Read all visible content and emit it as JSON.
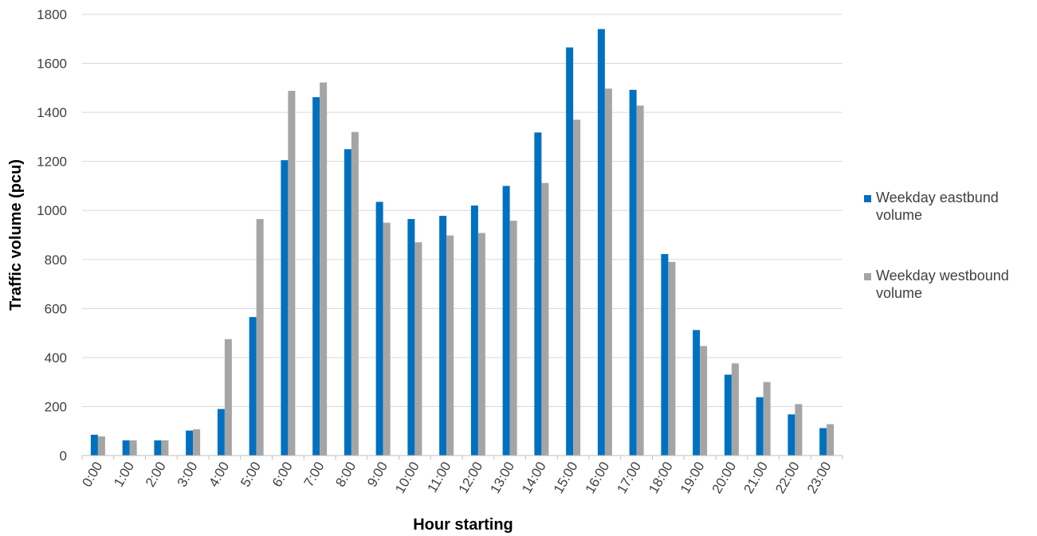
{
  "chart_data": {
    "type": "bar",
    "title": "",
    "xlabel": "Hour starting",
    "ylabel": "Traffic volume (pcu)",
    "ylim": [
      0,
      1800
    ],
    "yticks": [
      "0",
      "200",
      "400",
      "600",
      "800",
      "1000",
      "1200",
      "1400",
      "1600",
      "1800"
    ],
    "grid": true,
    "legend_position": "right",
    "categories": [
      "0:00",
      "1:00",
      "2:00",
      "3:00",
      "4:00",
      "5:00",
      "6:00",
      "7:00",
      "8:00",
      "9:00",
      "10:00",
      "11:00",
      "12:00",
      "13:00",
      "14:00",
      "15:00",
      "16:00",
      "17:00",
      "18:00",
      "19:00",
      "20:00",
      "21:00",
      "22:00",
      "23:00"
    ],
    "series": [
      {
        "name": "Weekday eastbund volume",
        "legend_lines": [
          "Weekday eastbund",
          "volume"
        ],
        "color": "#0070C0",
        "values": [
          85,
          62,
          62,
          102,
          190,
          565,
          1205,
          1462,
          1250,
          1035,
          965,
          978,
          1020,
          1100,
          1318,
          1665,
          1740,
          1492,
          822,
          512,
          330,
          238,
          168,
          112
        ]
      },
      {
        "name": "Weekday westbound volume",
        "legend_lines": [
          "Weekday westbound",
          "volume"
        ],
        "color": "#A5A5A5",
        "values": [
          78,
          62,
          62,
          107,
          475,
          965,
          1488,
          1522,
          1320,
          950,
          870,
          898,
          908,
          958,
          1112,
          1370,
          1497,
          1428,
          790,
          447,
          376,
          300,
          210,
          128
        ]
      }
    ]
  }
}
